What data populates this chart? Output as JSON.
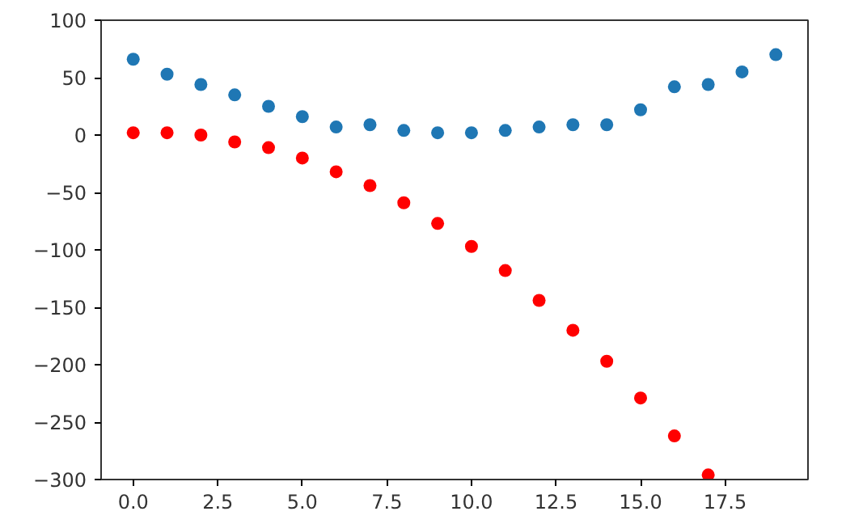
{
  "chart_data": {
    "type": "scatter",
    "marker": "circle",
    "grid": false,
    "xlim": [
      -0.95,
      19.95
    ],
    "xticks": [
      {
        "value": 0,
        "label": "0.0"
      },
      {
        "value": 2.5,
        "label": "2.5"
      },
      {
        "value": 5,
        "label": "5.0"
      },
      {
        "value": 7.5,
        "label": "7.5"
      },
      {
        "value": 10,
        "label": "10.0"
      },
      {
        "value": 12.5,
        "label": "12.5"
      },
      {
        "value": 15,
        "label": "15.0"
      },
      {
        "value": 17.5,
        "label": "17.5"
      }
    ],
    "ylim": [
      -300,
      100
    ],
    "yticks": [
      -300,
      -250,
      -200,
      -150,
      -100,
      -50,
      0,
      50,
      100
    ],
    "x": [
      0,
      1,
      2,
      3,
      4,
      5,
      6,
      7,
      8,
      9,
      10,
      11,
      12,
      13,
      14,
      15,
      16,
      17,
      18,
      19
    ],
    "series": [
      {
        "color": "#1f77b4",
        "values": [
          66,
          53,
          44,
          35,
          25,
          16,
          7,
          9,
          4,
          2,
          2,
          4,
          7,
          9,
          9,
          22,
          42,
          44,
          55,
          70
        ]
      },
      {
        "color": "#ff0000",
        "values": [
          2,
          2,
          0,
          -6,
          -11,
          -20,
          -32,
          -44,
          -59,
          -77,
          -97,
          -118,
          -144,
          -170,
          -197,
          -229,
          -262,
          -296,
          null,
          null
        ]
      }
    ]
  }
}
